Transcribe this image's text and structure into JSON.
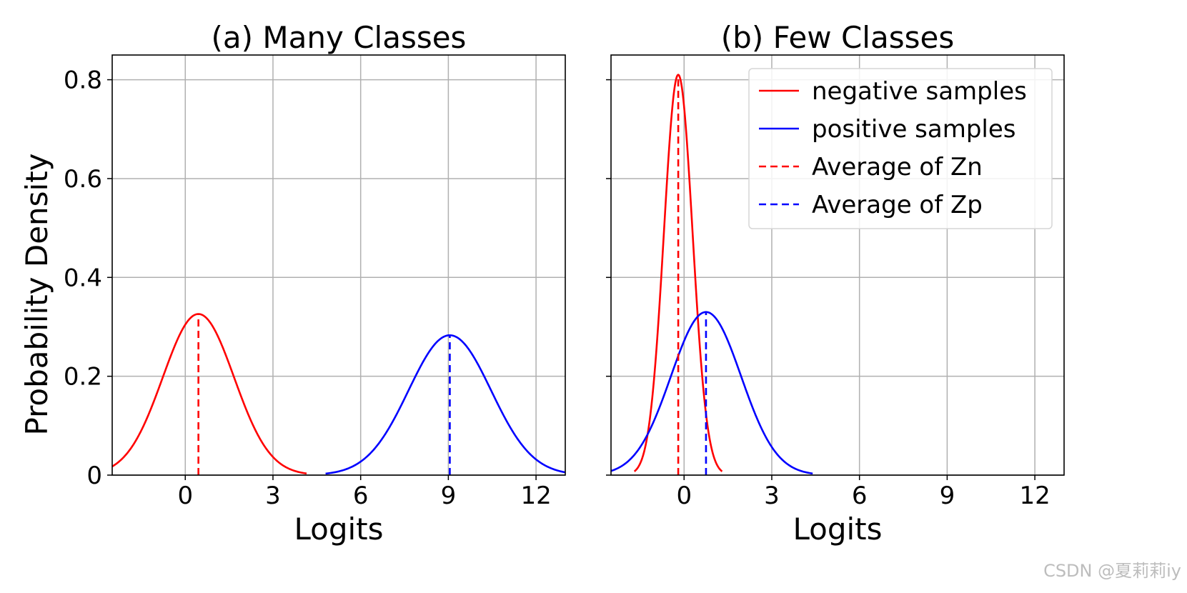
{
  "chart_data": [
    {
      "type": "line",
      "title": "(a) Many Classes",
      "xlabel": "Logits",
      "ylabel": "Probability Density",
      "xlim": [
        -2.5,
        13
      ],
      "ylim": [
        0,
        0.85
      ],
      "xticks": [
        0,
        3,
        6,
        9,
        12
      ],
      "yticks": [
        0,
        0.2,
        0.4,
        0.6,
        0.8
      ],
      "grid": true,
      "series": [
        {
          "name": "negative samples",
          "color": "#ff0000",
          "style": "solid",
          "distribution": "normal",
          "mean": 0.45,
          "std": 1.22,
          "x_range": [
            -2.5,
            4.15
          ],
          "peak": 0.326
        },
        {
          "name": "positive samples",
          "color": "#0000ff",
          "style": "solid",
          "distribution": "normal",
          "mean": 9.05,
          "std": 1.41,
          "x_range": [
            4.8,
            13
          ],
          "peak": 0.283
        },
        {
          "name": "Average of Zn",
          "color": "#ff0000",
          "style": "dashed",
          "x": 0.45,
          "y": [
            0,
            0.326
          ]
        },
        {
          "name": "Average of Zp",
          "color": "#0000ff",
          "style": "dashed",
          "x": 9.05,
          "y": [
            0,
            0.283
          ]
        }
      ]
    },
    {
      "type": "line",
      "title": "(b) Few Classes",
      "xlabel": "Logits",
      "ylabel": "",
      "xlim": [
        -2.5,
        13
      ],
      "ylim": [
        0,
        0.85
      ],
      "xticks": [
        0,
        3,
        6,
        9,
        12
      ],
      "yticks": [
        0,
        0.2,
        0.4,
        0.6,
        0.8
      ],
      "grid": true,
      "legend": {
        "position": "top-right",
        "entries": [
          {
            "label": "negative samples",
            "color": "#ff0000",
            "style": "solid"
          },
          {
            "label": "positive samples",
            "color": "#0000ff",
            "style": "solid"
          },
          {
            "label": "Average of Zn",
            "color": "#ff0000",
            "style": "dashed"
          },
          {
            "label": "Average of Zp",
            "color": "#0000ff",
            "style": "dashed"
          }
        ]
      },
      "series": [
        {
          "name": "negative samples",
          "color": "#ff0000",
          "style": "solid",
          "distribution": "normal",
          "mean": -0.2,
          "std": 0.49,
          "x_range": [
            -1.7,
            1.3
          ],
          "peak": 0.81
        },
        {
          "name": "positive samples",
          "color": "#0000ff",
          "style": "solid",
          "distribution": "normal",
          "mean": 0.75,
          "std": 1.2,
          "x_range": [
            -2.5,
            4.4
          ],
          "peak": 0.33
        },
        {
          "name": "Average of Zn",
          "color": "#ff0000",
          "style": "dashed",
          "x": -0.2,
          "y": [
            0,
            0.81
          ]
        },
        {
          "name": "Average of Zp",
          "color": "#0000ff",
          "style": "dashed",
          "x": 0.75,
          "y": [
            0,
            0.33
          ]
        }
      ]
    }
  ],
  "watermark": "CSDN @夏莉莉iy"
}
